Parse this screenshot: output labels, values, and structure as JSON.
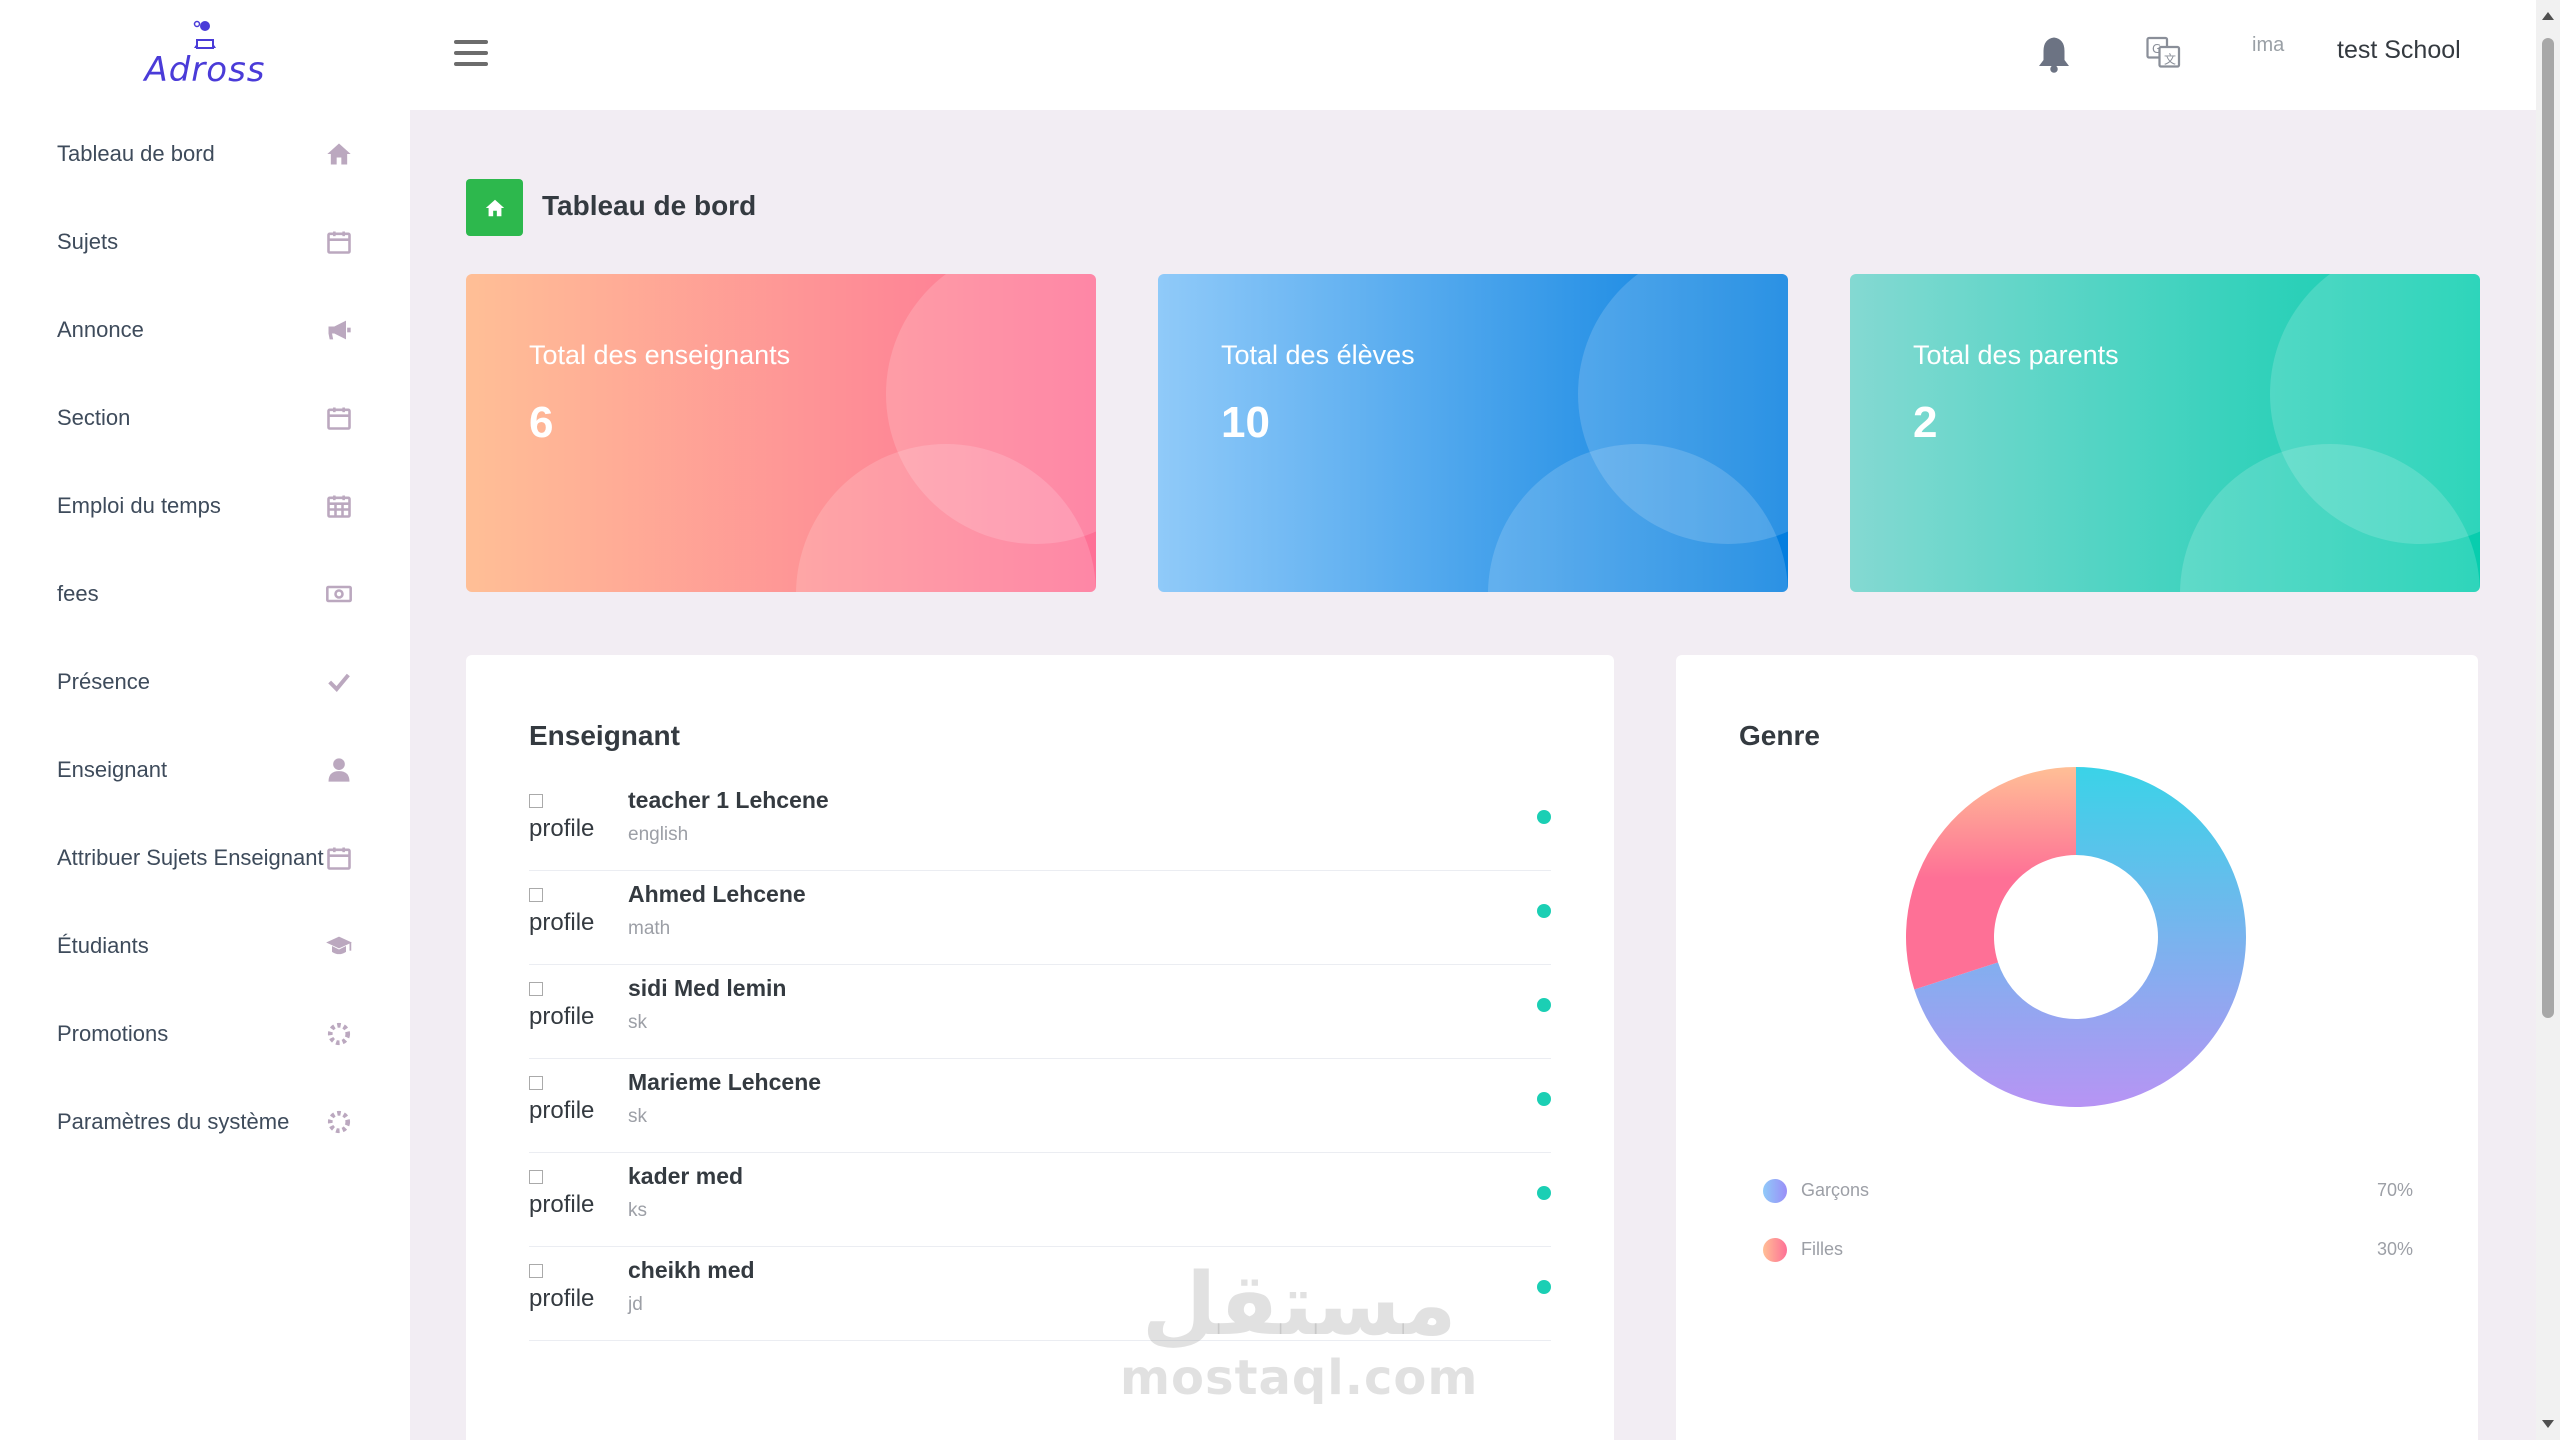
{
  "app": {
    "logo_text": "Adross"
  },
  "header": {
    "profile_img_alt": "ima",
    "profile_name": "test School"
  },
  "sidebar": {
    "items": [
      {
        "label": "Tableau de bord",
        "icon": "home-icon"
      },
      {
        "label": "Sujets",
        "icon": "calendar-icon"
      },
      {
        "label": "Annonce",
        "icon": "megaphone-icon"
      },
      {
        "label": "Section",
        "icon": "calendar-icon"
      },
      {
        "label": "Emploi du temps",
        "icon": "calendar-grid-icon"
      },
      {
        "label": "fees",
        "icon": "money-icon"
      },
      {
        "label": "Présence",
        "icon": "check-icon"
      },
      {
        "label": "Enseignant",
        "icon": "user-icon"
      },
      {
        "label": "Attribuer Sujets Enseignant",
        "icon": "calendar-icon"
      },
      {
        "label": "Étudiants",
        "icon": "graduation-cap-icon"
      },
      {
        "label": "Promotions",
        "icon": "gear-icon"
      },
      {
        "label": "Paramètres du système",
        "icon": "gear-icon"
      }
    ]
  },
  "page": {
    "title": "Tableau de bord"
  },
  "stats": [
    {
      "title": "Total des enseignants",
      "value": "6"
    },
    {
      "title": "Total des élèves",
      "value": "10"
    },
    {
      "title": "Total des parents",
      "value": "2"
    }
  ],
  "teachers": {
    "title": "Enseignant",
    "avatar_alt": "profile",
    "rows": [
      {
        "name": "teacher 1 Lehcene",
        "subject": "english"
      },
      {
        "name": "Ahmed Lehcene",
        "subject": "math"
      },
      {
        "name": "sidi Med lemin",
        "subject": "sk"
      },
      {
        "name": "Marieme Lehcene",
        "subject": "sk"
      },
      {
        "name": "kader med",
        "subject": "ks"
      },
      {
        "name": "cheikh med",
        "subject": "jd"
      }
    ]
  },
  "gender": {
    "title": "Genre",
    "legend": [
      {
        "label": "Garçons",
        "pct": "70%"
      },
      {
        "label": "Filles",
        "pct": "30%"
      }
    ]
  },
  "chart_data": {
    "type": "pie",
    "categories": [
      "Garçons",
      "Filles"
    ],
    "values": [
      70,
      30
    ],
    "colors": [
      "#9a8ef7",
      "#fe7096"
    ]
  },
  "watermark": {
    "arabic": "مستقل",
    "latin": "mostaql.com"
  }
}
